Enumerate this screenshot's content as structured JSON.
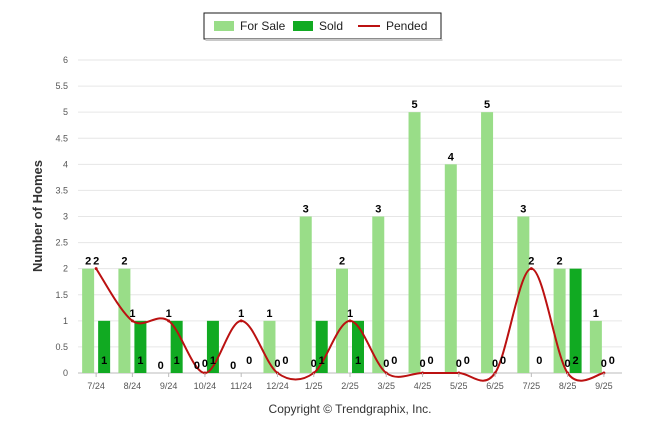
{
  "chart_data": {
    "type": "bar",
    "title": "",
    "xlabel": "",
    "ylabel": "Number of Homes",
    "ylim": [
      0,
      6
    ],
    "yticks": [
      "0",
      "0.5",
      "1",
      "1.5",
      "2",
      "2.5",
      "3",
      "3.5",
      "4",
      "4.5",
      "5",
      "5.5",
      "6"
    ],
    "grid": true,
    "legend_position": "top-center",
    "categories": [
      "7/24",
      "8/24",
      "9/24",
      "10/24",
      "11/24",
      "12/24",
      "1/25",
      "2/25",
      "3/25",
      "4/25",
      "5/25",
      "6/25",
      "7/25",
      "8/25",
      "9/25"
    ],
    "series": [
      {
        "name": "For Sale",
        "kind": "bar",
        "color": "#99dd88",
        "values": [
          2,
          2,
          0,
          0,
          0,
          1,
          3,
          2,
          3,
          5,
          4,
          5,
          3,
          2,
          1
        ]
      },
      {
        "name": "Sold",
        "kind": "bar",
        "color": "#11aa22",
        "values": [
          1,
          1,
          1,
          1,
          0,
          0,
          1,
          1,
          0,
          0,
          0,
          0,
          0,
          2,
          0
        ]
      },
      {
        "name": "Pended",
        "kind": "line",
        "color": "#bb1111",
        "values": [
          2,
          1,
          1,
          0,
          1,
          0,
          0,
          1,
          0,
          0,
          0,
          0,
          2,
          0,
          0
        ]
      }
    ],
    "credit": "Copyright © Trendgraphix, Inc."
  }
}
